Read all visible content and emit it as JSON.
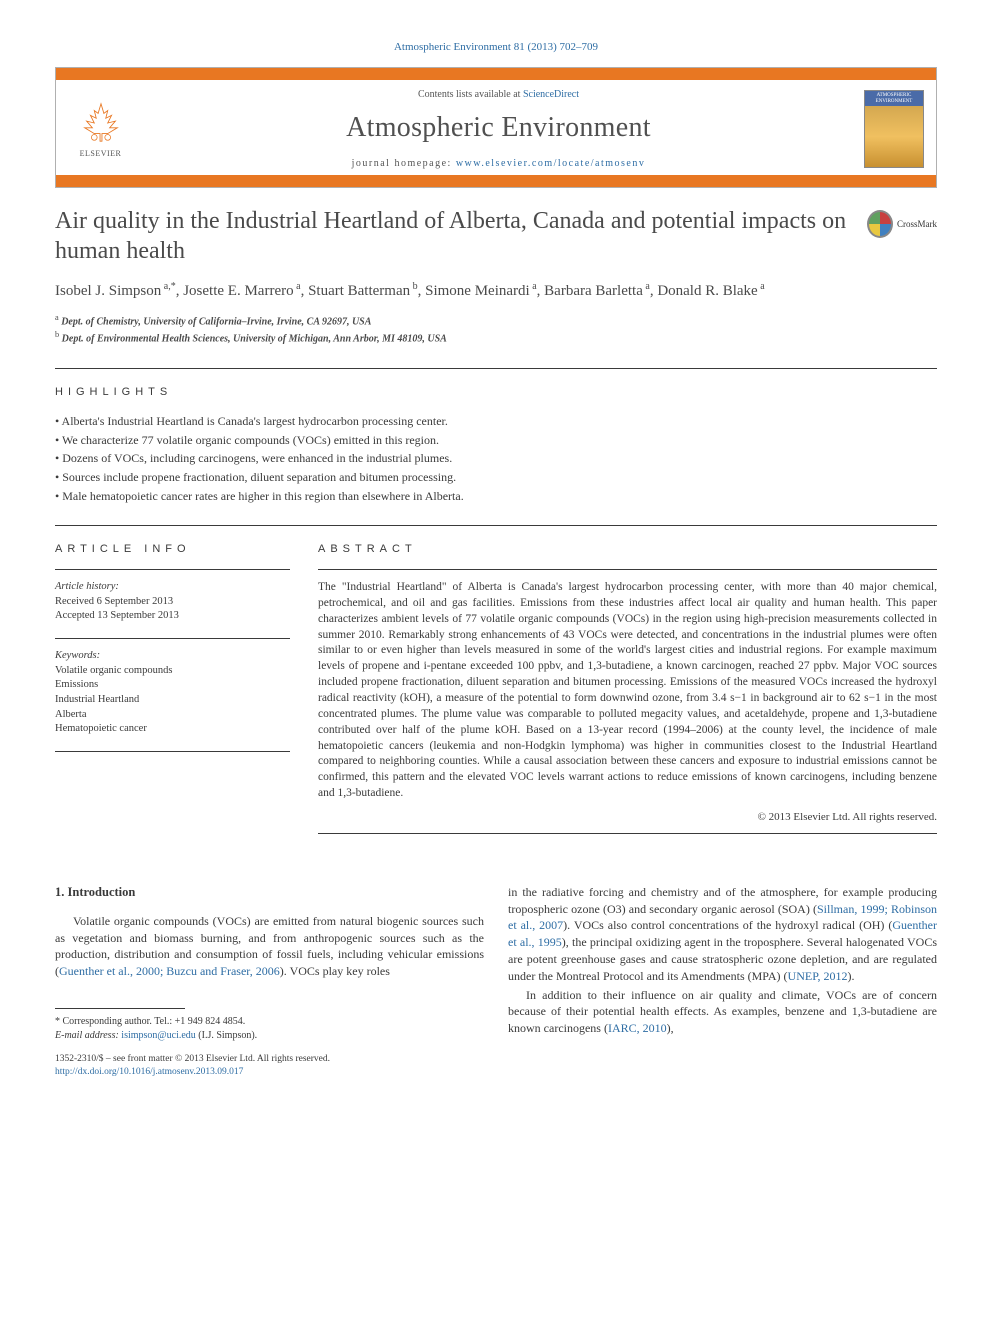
{
  "header": {
    "citation": "Atmospheric Environment 81 (2013) 702–709",
    "contents_prefix": "Contents lists available at ",
    "contents_link": "ScienceDirect",
    "journal_name": "Atmospheric Environment",
    "homepage_prefix": "journal homepage: ",
    "homepage_url": "www.elsevier.com/locate/atmosenv",
    "publisher": "ELSEVIER",
    "cover_text": "ATMOSPHERIC ENVIRONMENT"
  },
  "article": {
    "title": "Air quality in the Industrial Heartland of Alberta, Canada and potential impacts on human health",
    "crossmark": "CrossMark",
    "authors_html": "Isobel J. Simpson<sup> a,*</sup>, Josette E. Marrero<sup> a</sup>, Stuart Batterman<sup> b</sup>, Simone Meinardi<sup> a</sup>, Barbara Barletta<sup> a</sup>, Donald R. Blake<sup> a</sup>",
    "affiliations": [
      {
        "sup": "a",
        "text": "Dept. of Chemistry, University of California–Irvine, Irvine, CA 92697, USA"
      },
      {
        "sup": "b",
        "text": "Dept. of Environmental Health Sciences, University of Michigan, Ann Arbor, MI 48109, USA"
      }
    ]
  },
  "highlights": {
    "label": "HIGHLIGHTS",
    "items": [
      "Alberta's Industrial Heartland is Canada's largest hydrocarbon processing center.",
      "We characterize 77 volatile organic compounds (VOCs) emitted in this region.",
      "Dozens of VOCs, including carcinogens, were enhanced in the industrial plumes.",
      "Sources include propene fractionation, diluent separation and bitumen processing.",
      "Male hematopoietic cancer rates are higher in this region than elsewhere in Alberta."
    ]
  },
  "info": {
    "label": "ARTICLE INFO",
    "history_label": "Article history:",
    "received": "Received 6 September 2013",
    "accepted": "Accepted 13 September 2013",
    "keywords_label": "Keywords:",
    "keywords": [
      "Volatile organic compounds",
      "Emissions",
      "Industrial Heartland",
      "Alberta",
      "Hematopoietic cancer"
    ]
  },
  "abstract": {
    "label": "ABSTRACT",
    "text": "The \"Industrial Heartland\" of Alberta is Canada's largest hydrocarbon processing center, with more than 40 major chemical, petrochemical, and oil and gas facilities. Emissions from these industries affect local air quality and human health. This paper characterizes ambient levels of 77 volatile organic compounds (VOCs) in the region using high-precision measurements collected in summer 2010. Remarkably strong enhancements of 43 VOCs were detected, and concentrations in the industrial plumes were often similar to or even higher than levels measured in some of the world's largest cities and industrial regions. For example maximum levels of propene and i-pentane exceeded 100 ppbv, and 1,3-butadiene, a known carcinogen, reached 27 ppbv. Major VOC sources included propene fractionation, diluent separation and bitumen processing. Emissions of the measured VOCs increased the hydroxyl radical reactivity (kOH), a measure of the potential to form downwind ozone, from 3.4 s−1 in background air to 62 s−1 in the most concentrated plumes. The plume value was comparable to polluted megacity values, and acetaldehyde, propene and 1,3-butadiene contributed over half of the plume kOH. Based on a 13-year record (1994–2006) at the county level, the incidence of male hematopoietic cancers (leukemia and non-Hodgkin lymphoma) was higher in communities closest to the Industrial Heartland compared to neighboring counties. While a causal association between these cancers and exposure to industrial emissions cannot be confirmed, this pattern and the elevated VOC levels warrant actions to reduce emissions of known carcinogens, including benzene and 1,3-butadiene.",
    "copyright": "© 2013 Elsevier Ltd. All rights reserved."
  },
  "body": {
    "heading": "1. Introduction",
    "p1_pre": "Volatile organic compounds (VOCs) are emitted from natural biogenic sources such as vegetation and biomass burning, and from anthropogenic sources such as the production, distribution and consumption of fossil fuels, including vehicular emissions (",
    "p1_link": "Guenther et al., 2000; Buzcu and Fraser, 2006",
    "p1_post": "). VOCs play key roles",
    "p2_a": "in the radiative forcing and chemistry and of the atmosphere, for example producing tropospheric ozone (O3) and secondary organic aerosol (SOA) (",
    "p2_link1": "Sillman, 1999; Robinson et al., 2007",
    "p2_b": "). VOCs also control concentrations of the hydroxyl radical (OH) (",
    "p2_link2": "Guenther et al., 1995",
    "p2_c": "), the principal oxidizing agent in the troposphere. Several halogenated VOCs are potent greenhouse gases and cause stratospheric ozone depletion, and are regulated under the Montreal Protocol and its Amendments (MPA) (",
    "p2_link3": "UNEP, 2012",
    "p2_d": ").",
    "p3_a": "In addition to their influence on air quality and climate, VOCs are of concern because of their potential health effects. As examples, benzene and 1,3-butadiene are known carcinogens (",
    "p3_link": "IARC, 2010",
    "p3_b": "),"
  },
  "footer": {
    "corr_label": "* Corresponding author. Tel.: +1 949 824 4854.",
    "email_label": "E-mail address: ",
    "email": "isimpson@uci.edu",
    "email_suffix": " (I.J. Simpson).",
    "issn": "1352-2310/$ – see front matter © 2013 Elsevier Ltd. All rights reserved.",
    "doi": "http://dx.doi.org/10.1016/j.atmosenv.2013.09.017"
  },
  "style": {
    "link_color": "#2e6da4",
    "accent_color": "#e87722",
    "text_color": "#3a3a3a",
    "body_font": "Georgia, 'Times New Roman', serif"
  }
}
